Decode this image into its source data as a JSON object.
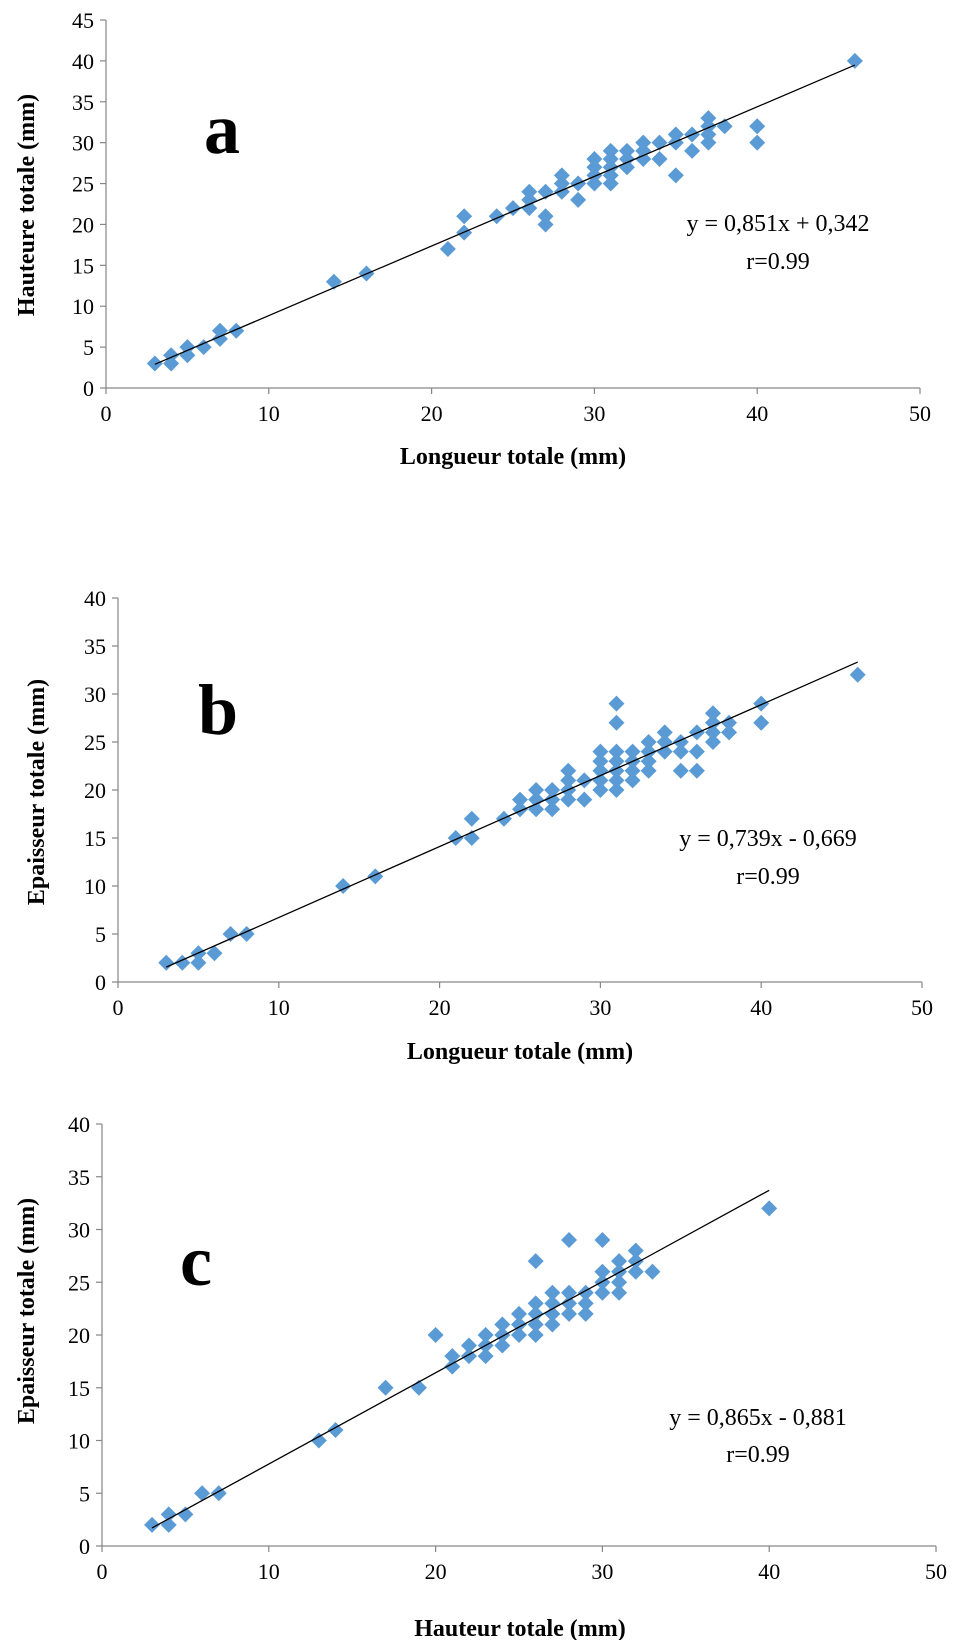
{
  "chart_data": [
    {
      "type": "scatter",
      "panel_label": "a",
      "xlabel": "Longueur totale (mm)",
      "ylabel": "Hauteure totale (mm)",
      "xlim": [
        0,
        50
      ],
      "ylim": [
        0,
        45
      ],
      "xticks": [
        0,
        10,
        20,
        30,
        40,
        50
      ],
      "yticks": [
        0,
        5,
        10,
        15,
        20,
        25,
        30,
        35,
        40,
        45
      ],
      "grid": false,
      "marker_color": "#5b9bd5",
      "equation": "y = 0,851x + 0,342",
      "r_label": "r=0.99",
      "trendline": {
        "slope": 0.851,
        "intercept": 0.342,
        "x_range": [
          3,
          46
        ]
      },
      "points": [
        [
          3,
          3
        ],
        [
          4,
          4
        ],
        [
          4,
          3
        ],
        [
          5,
          5
        ],
        [
          5,
          4
        ],
        [
          6,
          5
        ],
        [
          7,
          7
        ],
        [
          7,
          6
        ],
        [
          8,
          7
        ],
        [
          14,
          13
        ],
        [
          16,
          14
        ],
        [
          21,
          17
        ],
        [
          22,
          21
        ],
        [
          22,
          19
        ],
        [
          24,
          21
        ],
        [
          25,
          22
        ],
        [
          26,
          24
        ],
        [
          26,
          23
        ],
        [
          26,
          22
        ],
        [
          27,
          24
        ],
        [
          27,
          21
        ],
        [
          27,
          20
        ],
        [
          28,
          26
        ],
        [
          28,
          25
        ],
        [
          28,
          24
        ],
        [
          29,
          25
        ],
        [
          29,
          23
        ],
        [
          30,
          28
        ],
        [
          30,
          27
        ],
        [
          30,
          26
        ],
        [
          30,
          25
        ],
        [
          31,
          29
        ],
        [
          31,
          28
        ],
        [
          31,
          27
        ],
        [
          31,
          26
        ],
        [
          31,
          25
        ],
        [
          32,
          29
        ],
        [
          32,
          28
        ],
        [
          32,
          27
        ],
        [
          33,
          30
        ],
        [
          33,
          29
        ],
        [
          33,
          28
        ],
        [
          34,
          30
        ],
        [
          34,
          28
        ],
        [
          35,
          31
        ],
        [
          35,
          30
        ],
        [
          35,
          26
        ],
        [
          36,
          31
        ],
        [
          36,
          29
        ],
        [
          37,
          33
        ],
        [
          37,
          32
        ],
        [
          37,
          31
        ],
        [
          37,
          30
        ],
        [
          38,
          32
        ],
        [
          40,
          32
        ],
        [
          40,
          30
        ],
        [
          46,
          40
        ]
      ]
    },
    {
      "type": "scatter",
      "panel_label": "b",
      "xlabel": "Longueur totale (mm)",
      "ylabel": "Epaisseur totale (mm)",
      "xlim": [
        0,
        50
      ],
      "ylim": [
        0,
        40
      ],
      "xticks": [
        0,
        10,
        20,
        30,
        40,
        50
      ],
      "yticks": [
        0,
        5,
        10,
        15,
        20,
        25,
        30,
        35,
        40
      ],
      "grid": false,
      "marker_color": "#5b9bd5",
      "equation": "y = 0,739x - 0,669",
      "r_label": "r=0.99",
      "trendline": {
        "slope": 0.739,
        "intercept": -0.669,
        "x_range": [
          3,
          46
        ]
      },
      "points": [
        [
          3,
          2
        ],
        [
          4,
          2
        ],
        [
          5,
          3
        ],
        [
          5,
          2
        ],
        [
          6,
          3
        ],
        [
          7,
          5
        ],
        [
          8,
          5
        ],
        [
          14,
          10
        ],
        [
          16,
          11
        ],
        [
          21,
          15
        ],
        [
          22,
          17
        ],
        [
          22,
          15
        ],
        [
          24,
          17
        ],
        [
          25,
          19
        ],
        [
          25,
          18
        ],
        [
          26,
          20
        ],
        [
          26,
          19
        ],
        [
          26,
          18
        ],
        [
          27,
          20
        ],
        [
          27,
          19
        ],
        [
          27,
          18
        ],
        [
          28,
          22
        ],
        [
          28,
          21
        ],
        [
          28,
          20
        ],
        [
          28,
          19
        ],
        [
          29,
          21
        ],
        [
          29,
          19
        ],
        [
          30,
          24
        ],
        [
          30,
          23
        ],
        [
          30,
          22
        ],
        [
          30,
          21
        ],
        [
          30,
          20
        ],
        [
          31,
          29
        ],
        [
          31,
          27
        ],
        [
          31,
          24
        ],
        [
          31,
          23
        ],
        [
          31,
          22
        ],
        [
          31,
          21
        ],
        [
          31,
          20
        ],
        [
          32,
          24
        ],
        [
          32,
          23
        ],
        [
          32,
          22
        ],
        [
          32,
          21
        ],
        [
          33,
          25
        ],
        [
          33,
          24
        ],
        [
          33,
          23
        ],
        [
          33,
          22
        ],
        [
          34,
          26
        ],
        [
          34,
          25
        ],
        [
          34,
          24
        ],
        [
          35,
          25
        ],
        [
          35,
          24
        ],
        [
          35,
          22
        ],
        [
          36,
          26
        ],
        [
          36,
          24
        ],
        [
          36,
          22
        ],
        [
          37,
          28
        ],
        [
          37,
          27
        ],
        [
          37,
          26
        ],
        [
          37,
          25
        ],
        [
          38,
          27
        ],
        [
          38,
          26
        ],
        [
          40,
          29
        ],
        [
          40,
          27
        ],
        [
          46,
          32
        ]
      ]
    },
    {
      "type": "scatter",
      "panel_label": "c",
      "xlabel": "Hauteur totale (mm)",
      "ylabel": "Epaisseur totale (mm)",
      "xlim": [
        0,
        50
      ],
      "ylim": [
        0,
        40
      ],
      "xticks": [
        0,
        10,
        20,
        30,
        40,
        50
      ],
      "yticks": [
        0,
        5,
        10,
        15,
        20,
        25,
        30,
        35,
        40
      ],
      "grid": false,
      "marker_color": "#5b9bd5",
      "equation": "y = 0,865x - 0,881",
      "r_label": "r=0.99",
      "trendline": {
        "slope": 0.865,
        "intercept": -0.881,
        "x_range": [
          3,
          40
        ]
      },
      "points": [
        [
          3,
          2
        ],
        [
          4,
          3
        ],
        [
          4,
          2
        ],
        [
          5,
          3
        ],
        [
          6,
          5
        ],
        [
          7,
          5
        ],
        [
          13,
          10
        ],
        [
          14,
          11
        ],
        [
          17,
          15
        ],
        [
          19,
          15
        ],
        [
          20,
          20
        ],
        [
          21,
          18
        ],
        [
          21,
          17
        ],
        [
          22,
          19
        ],
        [
          22,
          18
        ],
        [
          23,
          20
        ],
        [
          23,
          19
        ],
        [
          23,
          18
        ],
        [
          24,
          21
        ],
        [
          24,
          20
        ],
        [
          24,
          19
        ],
        [
          25,
          22
        ],
        [
          25,
          21
        ],
        [
          25,
          20
        ],
        [
          26,
          27
        ],
        [
          26,
          23
        ],
        [
          26,
          22
        ],
        [
          26,
          21
        ],
        [
          26,
          20
        ],
        [
          27,
          24
        ],
        [
          27,
          23
        ],
        [
          27,
          22
        ],
        [
          27,
          21
        ],
        [
          28,
          29
        ],
        [
          28,
          24
        ],
        [
          28,
          23
        ],
        [
          28,
          22
        ],
        [
          29,
          24
        ],
        [
          29,
          23
        ],
        [
          29,
          22
        ],
        [
          30,
          29
        ],
        [
          30,
          26
        ],
        [
          30,
          25
        ],
        [
          30,
          24
        ],
        [
          31,
          27
        ],
        [
          31,
          26
        ],
        [
          31,
          25
        ],
        [
          31,
          24
        ],
        [
          32,
          28
        ],
        [
          32,
          27
        ],
        [
          32,
          26
        ],
        [
          33,
          26
        ],
        [
          40,
          32
        ]
      ]
    }
  ]
}
